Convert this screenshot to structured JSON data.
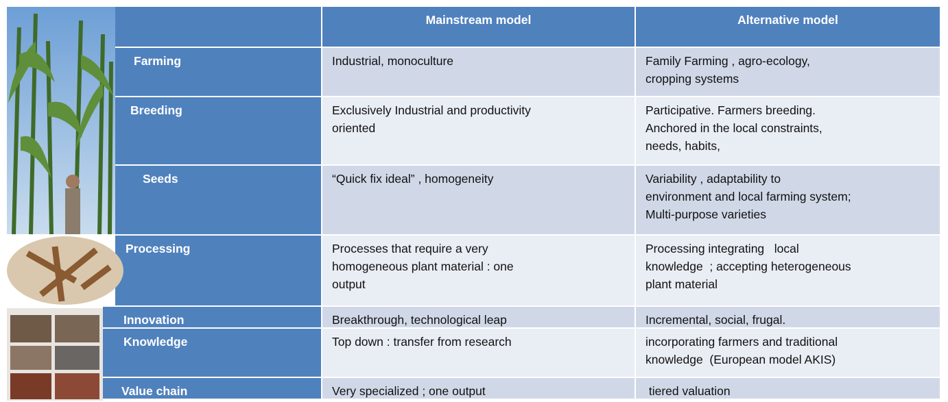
{
  "table": {
    "header": [
      "Mainstream model",
      "Alternative model"
    ],
    "rows": [
      {
        "label": "Farming",
        "cells": [
          {
            "lines": [
              "Industrial, monoculture"
            ]
          },
          {
            "lines": [
              "Family Farming , agro-ecology,",
              "cropping systems"
            ]
          }
        ]
      },
      {
        "label": "Breeding",
        "cells": [
          {
            "lines": [
              "Exclusively Industrial and productivity",
              "oriented"
            ]
          },
          {
            "lines": [
              "Participative. Farmers breeding.",
              "Anchored in the local constraints,",
              "needs, habits,"
            ]
          }
        ]
      },
      {
        "label": "Seeds",
        "cells": [
          {
            "lines": [
              "“Quick fix ideal” , homogeneity"
            ]
          },
          {
            "lines": [
              "Variability , adaptability to",
              "environment and local farming system;",
              "Multi-purpose varieties"
            ]
          }
        ]
      },
      {
        "label": "Processing",
        "cells": [
          {
            "lines": [
              "Processes that require a very",
              "homogeneous plant material : one",
              "output"
            ]
          },
          {
            "lines": [
              "Processing integrating   local",
              "knowledge  ; accepting heterogeneous",
              "plant material"
            ]
          }
        ]
      },
      {
        "label": "Innovation",
        "cells": [
          {
            "lines": [
              "Breakthrough, technological leap"
            ]
          },
          {
            "lines": [
              "Incremental, social, frugal."
            ]
          }
        ]
      },
      {
        "label": "Knowledge",
        "cells": [
          {
            "lines": [
              "Top down : transfer from research"
            ]
          },
          {
            "lines": [
              "incorporating farmers and traditional",
              "knowledge  (European model AKIS)"
            ]
          }
        ]
      },
      {
        "label": "Value chain",
        "cells": [
          {
            "lines": [
              "Very specialized ; one output"
            ]
          },
          {
            "lines": [
              " tiered valuation"
            ]
          }
        ]
      }
    ]
  }
}
